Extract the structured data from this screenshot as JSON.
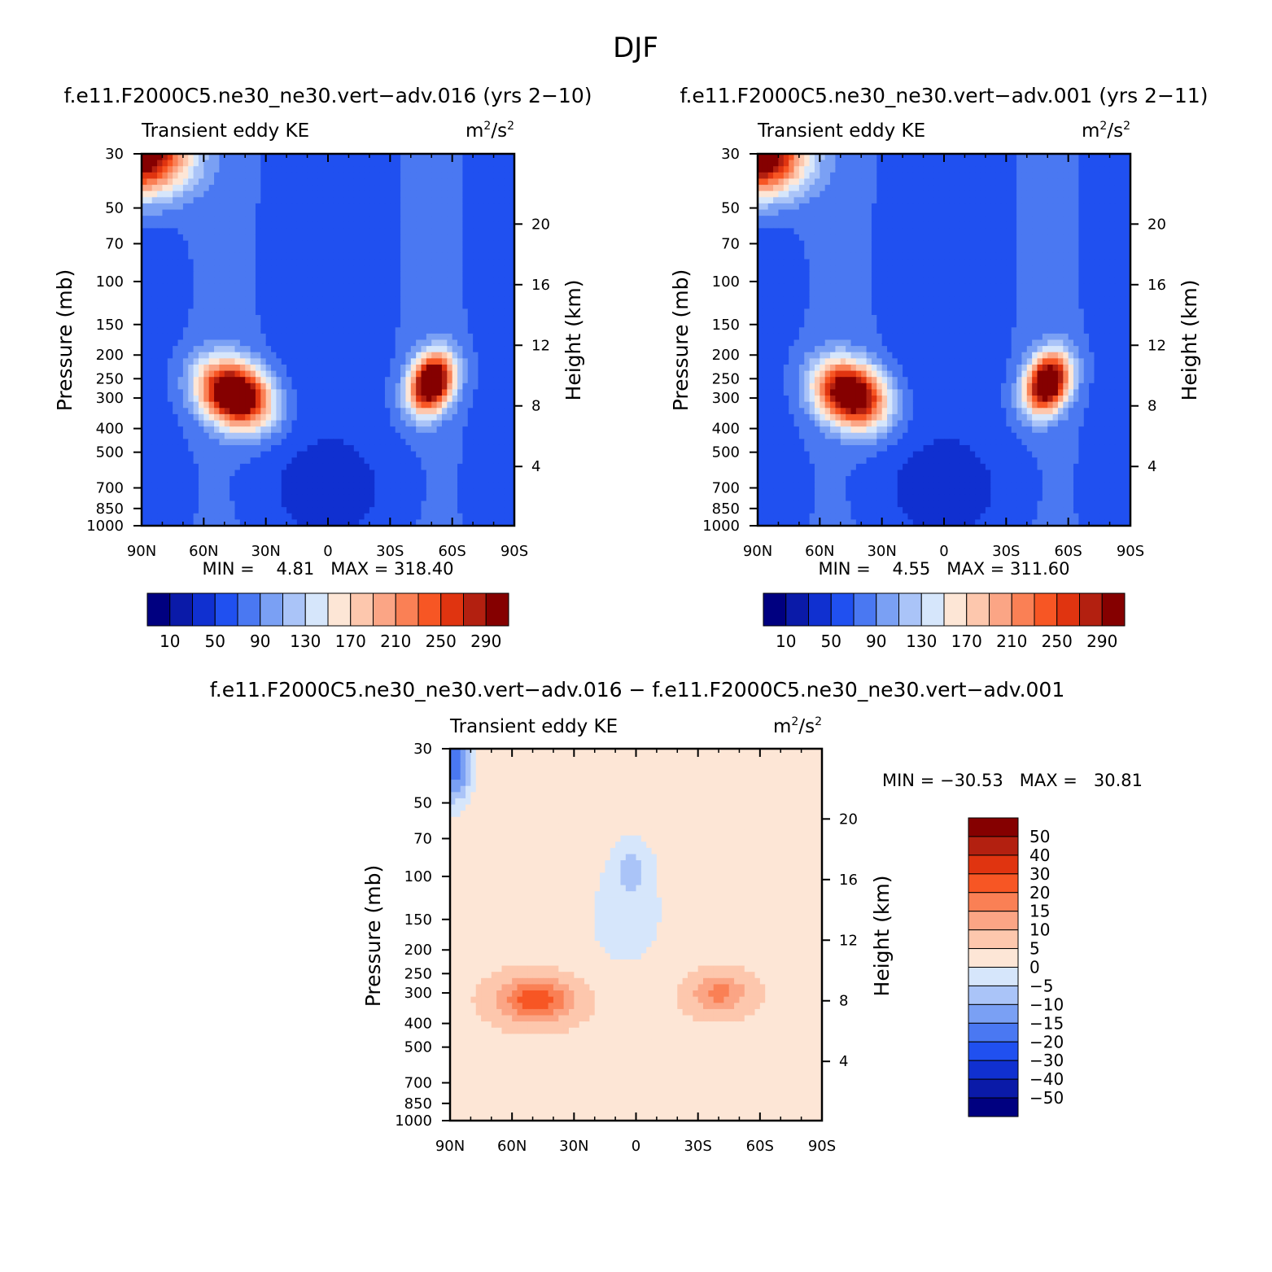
{
  "figure": {
    "title": "DJF"
  },
  "colors": {
    "ke_scale": [
      "#000080",
      "#0a1aa8",
      "#1030d0",
      "#2050f0",
      "#4a78f2",
      "#7aa0f4",
      "#aac4f8",
      "#d6e6fb",
      "#fde6d6",
      "#fdc7ad",
      "#fba585",
      "#fa8055",
      "#f75624",
      "#e03410",
      "#b32010",
      "#850000"
    ],
    "diff_scale": [
      "#000080",
      "#0a1aa8",
      "#1030d0",
      "#2050f0",
      "#4a78f2",
      "#7aa0f4",
      "#aac4f8",
      "#d6e6fb",
      "#fde6d6",
      "#fdc7ad",
      "#fba585",
      "#fa8055",
      "#f75624",
      "#e03410",
      "#b32010",
      "#850000"
    ]
  },
  "chart_data": [
    {
      "type": "heatmap",
      "id": "panel1",
      "title": "f.e11.F2000C5.ne30_ne30.vert−adv.016 (yrs 2−10)",
      "left_label": "Transient eddy KE",
      "units_base": "m",
      "units_mid": "/s",
      "units_sup": "2",
      "xlabel": "",
      "ylabel": "Pressure (mb)",
      "ylabel_right": "Height (km)",
      "x_ticks": [
        "90N",
        "60N",
        "30N",
        "0",
        "30S",
        "60S",
        "90S"
      ],
      "x_tick_values": [
        90,
        60,
        30,
        0,
        -30,
        -60,
        -90
      ],
      "y_ticks": [
        "30",
        "50",
        "70",
        "100",
        "150",
        "200",
        "250",
        "300",
        "400",
        "500",
        "700",
        "850",
        "1000"
      ],
      "y_tick_values": [
        30,
        50,
        70,
        100,
        150,
        200,
        250,
        300,
        400,
        500,
        700,
        850,
        1000
      ],
      "height_ticks": [
        "20",
        "16",
        "12",
        "8",
        "4"
      ],
      "height_tick_values": [
        20,
        16,
        12,
        8,
        4
      ],
      "ylim": [
        1000,
        30
      ],
      "min_label": "MIN =    4.81   MAX = 318.40",
      "min": 4.81,
      "max": 318.4,
      "levels": [
        10,
        30,
        50,
        70,
        90,
        110,
        130,
        150,
        170,
        190,
        210,
        230,
        250,
        270,
        290
      ],
      "colorbar_labels": [
        "10",
        "50",
        "90",
        "130",
        "170",
        "210",
        "250",
        "290"
      ],
      "features": [
        {
          "lat": 45,
          "p": 290,
          "amp": 310,
          "wlat": 16,
          "wlogp": 0.22,
          "shape": "jet"
        },
        {
          "lat": -50,
          "p": 260,
          "amp": 305,
          "wlat": 10,
          "wlogp": 0.2,
          "shape": "jet"
        },
        {
          "lat": 90,
          "p": 30,
          "amp": 280,
          "wlat": 22,
          "wlogp": 0.38,
          "shape": "polar"
        }
      ]
    },
    {
      "type": "heatmap",
      "id": "panel2",
      "title": "f.e11.F2000C5.ne30_ne30.vert−adv.001 (yrs 2−11)",
      "left_label": "Transient eddy KE",
      "units_base": "m",
      "units_mid": "/s",
      "units_sup": "2",
      "xlabel": "",
      "ylabel": "Pressure (mb)",
      "ylabel_right": "Height (km)",
      "x_ticks": [
        "90N",
        "60N",
        "30N",
        "0",
        "30S",
        "60S",
        "90S"
      ],
      "x_tick_values": [
        90,
        60,
        30,
        0,
        -30,
        -60,
        -90
      ],
      "y_ticks": [
        "30",
        "50",
        "70",
        "100",
        "150",
        "200",
        "250",
        "300",
        "400",
        "500",
        "700",
        "850",
        "1000"
      ],
      "y_tick_values": [
        30,
        50,
        70,
        100,
        150,
        200,
        250,
        300,
        400,
        500,
        700,
        850,
        1000
      ],
      "height_ticks": [
        "20",
        "16",
        "12",
        "8",
        "4"
      ],
      "height_tick_values": [
        20,
        16,
        12,
        8,
        4
      ],
      "ylim": [
        1000,
        30
      ],
      "min_label": "MIN =    4.55   MAX = 311.60",
      "min": 4.55,
      "max": 311.6,
      "levels": [
        10,
        30,
        50,
        70,
        90,
        110,
        130,
        150,
        170,
        190,
        210,
        230,
        250,
        270,
        290
      ],
      "colorbar_labels": [
        "10",
        "50",
        "90",
        "130",
        "170",
        "210",
        "250",
        "290"
      ],
      "features": [
        {
          "lat": 45,
          "p": 290,
          "amp": 290,
          "wlat": 16,
          "wlogp": 0.22,
          "shape": "jet"
        },
        {
          "lat": -50,
          "p": 260,
          "amp": 300,
          "wlat": 10,
          "wlogp": 0.2,
          "shape": "jet"
        },
        {
          "lat": 90,
          "p": 30,
          "amp": 290,
          "wlat": 22,
          "wlogp": 0.38,
          "shape": "polar"
        }
      ]
    },
    {
      "type": "heatmap",
      "id": "panel3",
      "title": "f.e11.F2000C5.ne30_ne30.vert−adv.016 − f.e11.F2000C5.ne30_ne30.vert−adv.001",
      "left_label": "Transient eddy KE",
      "units_base": "m",
      "units_mid": "/s",
      "units_sup": "2",
      "xlabel": "",
      "ylabel": "Pressure (mb)",
      "ylabel_right": "Height (km)",
      "x_ticks": [
        "90N",
        "60N",
        "30N",
        "0",
        "30S",
        "60S",
        "90S"
      ],
      "x_tick_values": [
        90,
        60,
        30,
        0,
        -30,
        -60,
        -90
      ],
      "y_ticks": [
        "30",
        "50",
        "70",
        "100",
        "150",
        "200",
        "250",
        "300",
        "400",
        "500",
        "700",
        "850",
        "1000"
      ],
      "y_tick_values": [
        30,
        50,
        70,
        100,
        150,
        200,
        250,
        300,
        400,
        500,
        700,
        850,
        1000
      ],
      "height_ticks": [
        "20",
        "16",
        "12",
        "8",
        "4"
      ],
      "height_tick_values": [
        20,
        16,
        12,
        8,
        4
      ],
      "ylim": [
        1000,
        30
      ],
      "min_label": "MIN = −30.53   MAX =   30.81",
      "min": -30.53,
      "max": 30.81,
      "levels": [
        -50,
        -40,
        -30,
        -20,
        -15,
        -10,
        -5,
        0,
        5,
        10,
        15,
        20,
        30,
        40,
        50
      ],
      "colorbar_labels": [
        "50",
        "40",
        "30",
        "20",
        "15",
        "10",
        "5",
        "0",
        "−5",
        "−10",
        "−15",
        "−20",
        "−30",
        "−40",
        "−50"
      ],
      "features": [
        {
          "lat": 48,
          "p": 320,
          "amp": 20,
          "wlat": 18,
          "wlogp": 0.2,
          "shape": "blob"
        },
        {
          "lat": -40,
          "p": 300,
          "amp": 13,
          "wlat": 14,
          "wlogp": 0.18,
          "shape": "blob"
        },
        {
          "lat": 88,
          "p": 35,
          "amp": -24,
          "wlat": 8,
          "wlogp": 0.35,
          "shape": "blob"
        },
        {
          "lat": 2,
          "p": 90,
          "amp": -8,
          "wlat": 10,
          "wlogp": 0.3,
          "shape": "blob"
        }
      ]
    }
  ]
}
